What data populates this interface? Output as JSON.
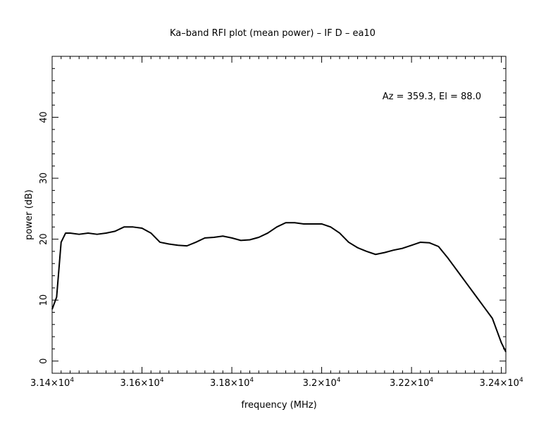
{
  "chart_data": {
    "type": "line",
    "title": "Ka–band RFI plot (mean power) – IF D – ea10",
    "xlabel": "frequency (MHz)",
    "ylabel": "power (dB)",
    "annotation": "Az = 359.3, El = 88.0",
    "xlim": [
      31400,
      32410
    ],
    "ylim": [
      -2,
      50
    ],
    "x_ticks": [
      {
        "value": 31400,
        "mantissa": "3.14",
        "exp": "4"
      },
      {
        "value": 31600,
        "mantissa": "3.16",
        "exp": "4"
      },
      {
        "value": 31800,
        "mantissa": "3.18",
        "exp": "4"
      },
      {
        "value": 32000,
        "mantissa": "3.2",
        "exp": "4"
      },
      {
        "value": 32200,
        "mantissa": "3.22",
        "exp": "4"
      },
      {
        "value": 32400,
        "mantissa": "3.24",
        "exp": "4"
      }
    ],
    "y_ticks": [
      0,
      10,
      20,
      30,
      40
    ],
    "series": [
      {
        "x": [
          31400,
          31410,
          31420,
          31430,
          31440,
          31460,
          31480,
          31500,
          31520,
          31540,
          31560,
          31580,
          31600,
          31620,
          31640,
          31660,
          31680,
          31700,
          31720,
          31740,
          31760,
          31780,
          31800,
          31820,
          31840,
          31860,
          31880,
          31900,
          31920,
          31940,
          31960,
          31980,
          32000,
          32020,
          32040,
          32060,
          32080,
          32100,
          32120,
          32140,
          32160,
          32180,
          32200,
          32220,
          32240,
          32260,
          32280,
          32300,
          32320,
          32340,
          32360,
          32380,
          32390,
          32400,
          32410
        ],
        "y": [
          8.5,
          10.5,
          19.5,
          21.0,
          21.0,
          20.8,
          21.0,
          20.8,
          21.0,
          21.3,
          22.0,
          22.0,
          21.8,
          21.0,
          19.5,
          19.2,
          19.0,
          18.9,
          19.5,
          20.2,
          20.3,
          20.5,
          20.2,
          19.8,
          19.9,
          20.3,
          21.0,
          22.0,
          22.7,
          22.7,
          22.5,
          22.5,
          22.5,
          22.0,
          21.0,
          19.5,
          18.6,
          18.0,
          17.5,
          17.8,
          18.2,
          18.5,
          19.0,
          19.5,
          19.4,
          18.8,
          17.0,
          15.0,
          13.0,
          11.0,
          9.0,
          7.0,
          5.0,
          3.0,
          1.5
        ]
      }
    ]
  }
}
